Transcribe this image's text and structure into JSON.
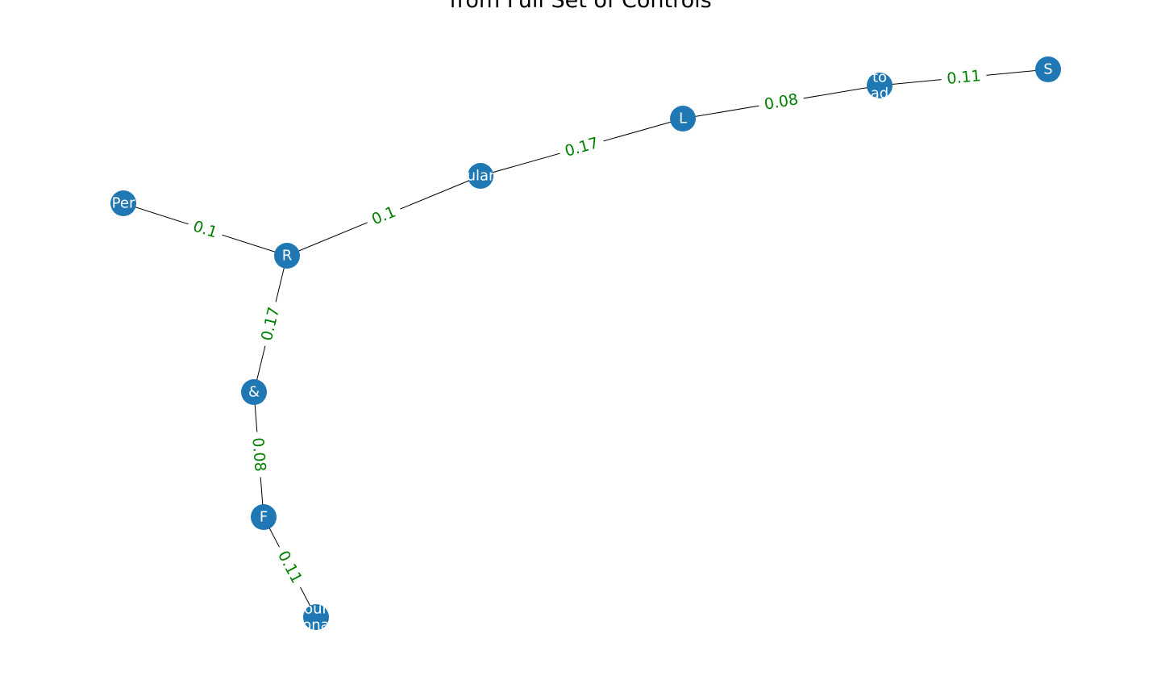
{
  "title": "from Full Set of Controls",
  "colors": {
    "node": "#1f77b4",
    "node_text": "#ffffff",
    "edge": "#000000",
    "edge_label": "#008000"
  },
  "nodes": [
    {
      "id": "S",
      "lines": [
        "S"
      ]
    },
    {
      "id": "to",
      "lines": [
        "to",
        "ad"
      ]
    },
    {
      "id": "L",
      "lines": [
        "L"
      ]
    },
    {
      "id": "ular",
      "lines": [
        "ular"
      ]
    },
    {
      "id": "R",
      "lines": [
        "R"
      ]
    },
    {
      "id": "Per",
      "lines": [
        "Per"
      ]
    },
    {
      "id": "amp",
      "lines": [
        "&"
      ]
    },
    {
      "id": "F",
      "lines": [
        "F"
      ]
    },
    {
      "id": "our",
      "lines": [
        "our",
        "ona"
      ]
    }
  ],
  "edges": [
    {
      "source": "to",
      "target": "S",
      "weight": "0.11"
    },
    {
      "source": "L",
      "target": "to",
      "weight": "0.08"
    },
    {
      "source": "ular",
      "target": "L",
      "weight": "0.17"
    },
    {
      "source": "R",
      "target": "ular",
      "weight": "0.1"
    },
    {
      "source": "Per",
      "target": "R",
      "weight": "0.1"
    },
    {
      "source": "R",
      "target": "amp",
      "weight": "0.17"
    },
    {
      "source": "amp",
      "target": "F",
      "weight": "0.08"
    },
    {
      "source": "F",
      "target": "our",
      "weight": "0.11"
    }
  ]
}
